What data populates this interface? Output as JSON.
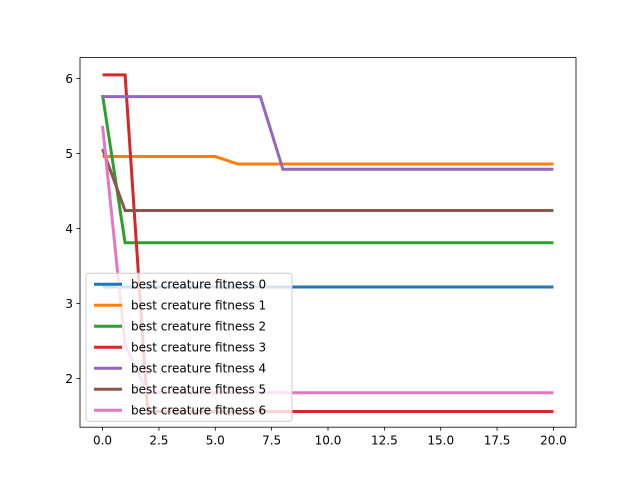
{
  "chart_data": {
    "type": "line",
    "title": "",
    "xlabel": "",
    "ylabel": "",
    "xlim": [
      -1.0,
      21.0
    ],
    "ylim": [
      1.35,
      6.28
    ],
    "x_ticks": [
      0.0,
      2.5,
      5.0,
      7.5,
      10.0,
      12.5,
      15.0,
      17.5,
      20.0
    ],
    "x_tick_labels": [
      "0.0",
      "2.5",
      "5.0",
      "7.5",
      "10.0",
      "12.5",
      "15.0",
      "17.5",
      "20.0"
    ],
    "y_ticks": [
      2,
      3,
      4,
      5,
      6
    ],
    "y_tick_labels": [
      "2",
      "3",
      "4",
      "5",
      "6"
    ],
    "grid": false,
    "legend_placement": "lower-left",
    "x": [
      0,
      1,
      2,
      3,
      4,
      5,
      6,
      7,
      8,
      9,
      10,
      11,
      12,
      13,
      14,
      15,
      16,
      17,
      18,
      19,
      20
    ],
    "series": [
      {
        "name": "best creature fitness 0",
        "color": "#1f77b4",
        "values": [
          3.22,
          3.22,
          3.22,
          3.22,
          3.22,
          3.22,
          3.22,
          3.22,
          3.22,
          3.22,
          3.22,
          3.22,
          3.22,
          3.22,
          3.22,
          3.22,
          3.22,
          3.22,
          3.22,
          3.22,
          3.22
        ]
      },
      {
        "name": "best creature fitness 1",
        "color": "#ff7f0e",
        "values": [
          4.96,
          4.96,
          4.96,
          4.96,
          4.96,
          4.96,
          4.86,
          4.86,
          4.86,
          4.86,
          4.86,
          4.86,
          4.86,
          4.86,
          4.86,
          4.86,
          4.86,
          4.86,
          4.86,
          4.86,
          4.86
        ]
      },
      {
        "name": "best creature fitness 2",
        "color": "#2ca02c",
        "values": [
          5.78,
          3.81,
          3.81,
          3.81,
          3.81,
          3.81,
          3.81,
          3.81,
          3.81,
          3.81,
          3.81,
          3.81,
          3.81,
          3.81,
          3.81,
          3.81,
          3.81,
          3.81,
          3.81,
          3.81,
          3.81
        ]
      },
      {
        "name": "best creature fitness 3",
        "color": "#d62728",
        "values": [
          6.05,
          6.05,
          1.56,
          1.56,
          1.56,
          1.56,
          1.56,
          1.56,
          1.56,
          1.56,
          1.56,
          1.56,
          1.56,
          1.56,
          1.56,
          1.56,
          1.56,
          1.56,
          1.56,
          1.56,
          1.56
        ]
      },
      {
        "name": "best creature fitness 4",
        "color": "#9467bd",
        "values": [
          5.76,
          5.76,
          5.76,
          5.76,
          5.76,
          5.76,
          5.76,
          5.76,
          4.79,
          4.79,
          4.79,
          4.79,
          4.79,
          4.79,
          4.79,
          4.79,
          4.79,
          4.79,
          4.79,
          4.79,
          4.79
        ]
      },
      {
        "name": "best creature fitness 5",
        "color": "#8c564b",
        "values": [
          5.06,
          4.24,
          4.24,
          4.24,
          4.24,
          4.24,
          4.24,
          4.24,
          4.24,
          4.24,
          4.24,
          4.24,
          4.24,
          4.24,
          4.24,
          4.24,
          4.24,
          4.24,
          4.24,
          4.24,
          4.24
        ]
      },
      {
        "name": "best creature fitness 6",
        "color": "#e377c2",
        "values": [
          5.37,
          2.45,
          1.81,
          1.81,
          1.81,
          1.81,
          1.81,
          1.81,
          1.81,
          1.81,
          1.81,
          1.81,
          1.81,
          1.81,
          1.81,
          1.81,
          1.81,
          1.81,
          1.81,
          1.81,
          1.81
        ]
      }
    ]
  }
}
